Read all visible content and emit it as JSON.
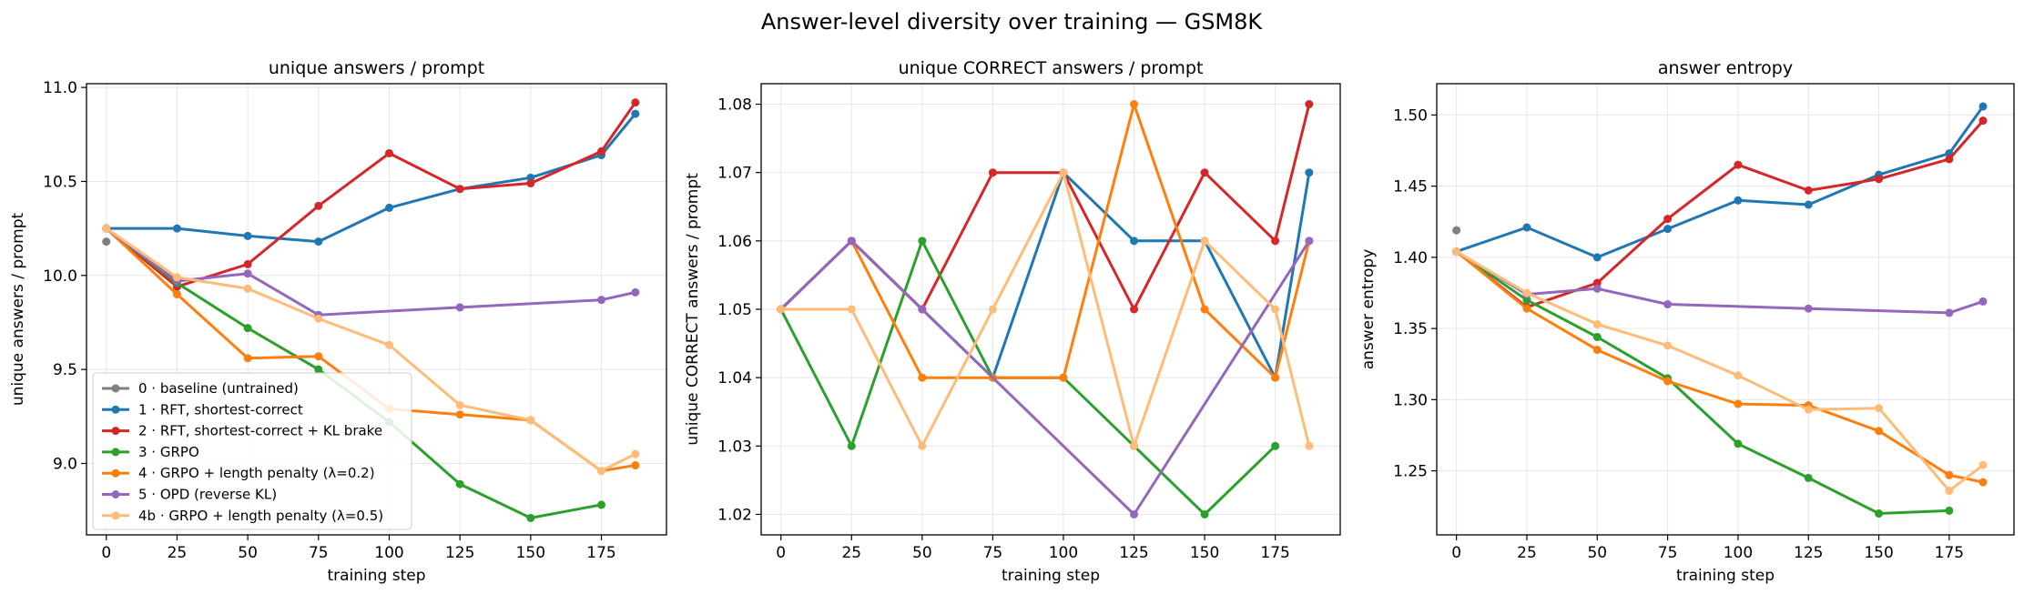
{
  "figure": {
    "title": "Answer-level diversity over training — GSM8K"
  },
  "legend": {
    "placement": "lower-left of first panel",
    "entries": [
      "0 · baseline (untrained)",
      "1 · RFT, shortest-correct",
      "2 · RFT, shortest-correct + KL brake",
      "3 · GRPO",
      "4 · GRPO + length penalty (λ=0.2)",
      "5 · OPD (reverse KL)",
      "4b · GRPO + length penalty (λ=0.5)"
    ]
  },
  "colors": {
    "baseline": "#7f7f7f",
    "rft": "#1f77b4",
    "rft_kl": "#d62728",
    "grpo": "#2ca02c",
    "grpo_lp02": "#ff7f0e",
    "opd": "#9467bd",
    "grpo_lp05": "#ffbb78"
  },
  "chart_data": [
    {
      "type": "line",
      "title": "unique answers / prompt",
      "xlabel": "training step",
      "ylabel": "unique answers / prompt",
      "xlim": [
        -7,
        198
      ],
      "ylim": [
        8.62,
        11.02
      ],
      "xticks": [
        0,
        25,
        50,
        75,
        100,
        125,
        150,
        175
      ],
      "yticks": [
        9.0,
        9.5,
        10.0,
        10.5,
        11.0
      ],
      "ytick_labels": [
        "9.0",
        "9.5",
        "10.0",
        "10.5",
        "11.0"
      ],
      "grid": true,
      "series": [
        {
          "name": "0 · baseline (untrained)",
          "color": "#7f7f7f",
          "x": [
            0
          ],
          "y": [
            10.18
          ]
        },
        {
          "name": "1 · RFT, shortest-correct",
          "color": "#1f77b4",
          "x": [
            0,
            25,
            50,
            75,
            100,
            125,
            150,
            175,
            187
          ],
          "y": [
            10.25,
            10.25,
            10.21,
            10.18,
            10.36,
            10.46,
            10.52,
            10.64,
            10.86
          ]
        },
        {
          "name": "2 · RFT, shortest-correct + KL brake",
          "color": "#d62728",
          "x": [
            0,
            25,
            50,
            75,
            100,
            125,
            150,
            175,
            187
          ],
          "y": [
            10.25,
            9.94,
            10.06,
            10.37,
            10.65,
            10.46,
            10.49,
            10.66,
            10.92
          ]
        },
        {
          "name": "3 · GRPO",
          "color": "#2ca02c",
          "x": [
            0,
            25,
            50,
            75,
            100,
            125,
            150,
            175
          ],
          "y": [
            10.25,
            9.96,
            9.72,
            9.5,
            9.22,
            8.89,
            8.71,
            8.78
          ]
        },
        {
          "name": "4 · GRPO + length penalty (λ=0.2)",
          "color": "#ff7f0e",
          "x": [
            0,
            25,
            50,
            75,
            100,
            125,
            150,
            175,
            187
          ],
          "y": [
            10.25,
            9.9,
            9.56,
            9.57,
            9.29,
            9.26,
            9.23,
            8.96,
            8.99
          ]
        },
        {
          "name": "5 · OPD (reverse KL)",
          "color": "#9467bd",
          "x": [
            0,
            25,
            50,
            75,
            125,
            175,
            187
          ],
          "y": [
            10.25,
            9.97,
            10.01,
            9.79,
            9.83,
            9.87,
            9.91
          ]
        },
        {
          "name": "4b · GRPO + length penalty (λ=0.5)",
          "color": "#ffbb78",
          "x": [
            0,
            25,
            50,
            75,
            100,
            125,
            150,
            175,
            187
          ],
          "y": [
            10.25,
            9.99,
            9.93,
            9.77,
            9.63,
            9.31,
            9.23,
            8.96,
            9.05
          ]
        }
      ]
    },
    {
      "type": "line",
      "title": "unique CORRECT answers / prompt",
      "xlabel": "training step",
      "ylabel": "unique CORRECT answers / prompt",
      "xlim": [
        -7,
        198
      ],
      "ylim": [
        1.017,
        1.083
      ],
      "xticks": [
        0,
        25,
        50,
        75,
        100,
        125,
        150,
        175
      ],
      "yticks": [
        1.02,
        1.03,
        1.04,
        1.05,
        1.06,
        1.07,
        1.08
      ],
      "ytick_labels": [
        "1.02",
        "1.03",
        "1.04",
        "1.05",
        "1.06",
        "1.07",
        "1.08"
      ],
      "grid": true,
      "series": [
        {
          "name": "1 · RFT, shortest-correct",
          "color": "#1f77b4",
          "x": [
            0,
            25,
            50,
            75,
            100,
            125,
            150,
            175,
            187
          ],
          "y": [
            1.05,
            1.06,
            1.05,
            1.04,
            1.07,
            1.06,
            1.06,
            1.04,
            1.07
          ]
        },
        {
          "name": "2 · RFT, shortest-correct + KL brake",
          "color": "#d62728",
          "x": [
            0,
            25,
            50,
            75,
            100,
            125,
            150,
            175,
            187
          ],
          "y": [
            1.05,
            1.06,
            1.05,
            1.07,
            1.07,
            1.05,
            1.07,
            1.06,
            1.08
          ]
        },
        {
          "name": "3 · GRPO",
          "color": "#2ca02c",
          "x": [
            0,
            25,
            50,
            75,
            100,
            125,
            150,
            175
          ],
          "y": [
            1.05,
            1.03,
            1.06,
            1.04,
            1.04,
            1.03,
            1.02,
            1.03
          ]
        },
        {
          "name": "4 · GRPO + length penalty (λ=0.2)",
          "color": "#ff7f0e",
          "x": [
            0,
            25,
            50,
            75,
            100,
            125,
            150,
            175,
            187
          ],
          "y": [
            1.05,
            1.06,
            1.04,
            1.04,
            1.04,
            1.08,
            1.05,
            1.04,
            1.06
          ]
        },
        {
          "name": "5 · OPD (reverse KL)",
          "color": "#9467bd",
          "x": [
            0,
            25,
            50,
            125,
            187
          ],
          "y": [
            1.05,
            1.06,
            1.05,
            1.02,
            1.06
          ]
        },
        {
          "name": "4b · GRPO + length penalty (λ=0.5)",
          "color": "#ffbb78",
          "x": [
            0,
            25,
            50,
            75,
            100,
            125,
            150,
            175,
            187
          ],
          "y": [
            1.05,
            1.05,
            1.03,
            1.05,
            1.07,
            1.03,
            1.06,
            1.05,
            1.03
          ]
        }
      ]
    },
    {
      "type": "line",
      "title": "answer entropy",
      "xlabel": "training step",
      "ylabel": "answer entropy",
      "xlim": [
        -7,
        198
      ],
      "ylim": [
        1.205,
        1.522
      ],
      "xticks": [
        0,
        25,
        50,
        75,
        100,
        125,
        150,
        175
      ],
      "yticks": [
        1.25,
        1.3,
        1.35,
        1.4,
        1.45,
        1.5
      ],
      "ytick_labels": [
        "1.25",
        "1.30",
        "1.35",
        "1.40",
        "1.45",
        "1.50"
      ],
      "grid": true,
      "series": [
        {
          "name": "0 · baseline (untrained)",
          "color": "#7f7f7f",
          "x": [
            0
          ],
          "y": [
            1.419
          ]
        },
        {
          "name": "1 · RFT, shortest-correct",
          "color": "#1f77b4",
          "x": [
            0,
            25,
            50,
            75,
            100,
            125,
            150,
            175,
            187
          ],
          "y": [
            1.404,
            1.421,
            1.4,
            1.42,
            1.44,
            1.437,
            1.458,
            1.473,
            1.506
          ]
        },
        {
          "name": "2 · RFT, shortest-correct + KL brake",
          "color": "#d62728",
          "x": [
            0,
            25,
            50,
            75,
            100,
            125,
            150,
            175,
            187
          ],
          "y": [
            1.404,
            1.365,
            1.382,
            1.427,
            1.465,
            1.447,
            1.455,
            1.469,
            1.496
          ]
        },
        {
          "name": "3 · GRPO",
          "color": "#2ca02c",
          "x": [
            0,
            25,
            50,
            75,
            100,
            125,
            150,
            175
          ],
          "y": [
            1.404,
            1.37,
            1.344,
            1.315,
            1.269,
            1.245,
            1.22,
            1.222
          ]
        },
        {
          "name": "4 · GRPO + length penalty (λ=0.2)",
          "color": "#ff7f0e",
          "x": [
            0,
            25,
            50,
            75,
            100,
            125,
            150,
            175,
            187
          ],
          "y": [
            1.404,
            1.364,
            1.335,
            1.313,
            1.297,
            1.296,
            1.278,
            1.247,
            1.242
          ]
        },
        {
          "name": "5 · OPD (reverse KL)",
          "color": "#9467bd",
          "x": [
            0,
            25,
            50,
            75,
            125,
            175,
            187
          ],
          "y": [
            1.404,
            1.374,
            1.378,
            1.367,
            1.364,
            1.361,
            1.369
          ]
        },
        {
          "name": "4b · GRPO + length penalty (λ=0.5)",
          "color": "#ffbb78",
          "x": [
            0,
            25,
            50,
            75,
            100,
            125,
            150,
            175,
            187
          ],
          "y": [
            1.404,
            1.375,
            1.353,
            1.338,
            1.317,
            1.293,
            1.294,
            1.236,
            1.254
          ]
        }
      ]
    }
  ]
}
